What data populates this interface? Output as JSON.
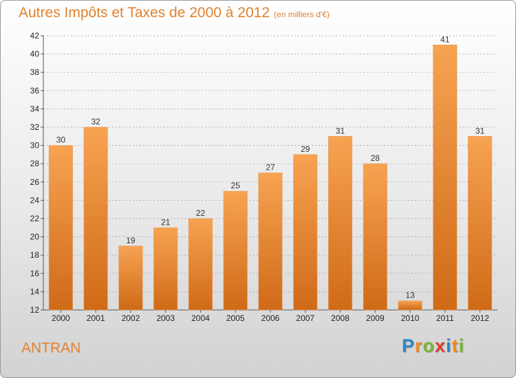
{
  "chart_data": {
    "type": "bar",
    "title": "Autres Impôts et Taxes de 2000 à 2012",
    "subtitle": "(en milliers d'€)",
    "categories": [
      "2000",
      "2001",
      "2002",
      "2003",
      "2004",
      "2005",
      "2006",
      "2007",
      "2008",
      "2009",
      "2010",
      "2011",
      "2012"
    ],
    "values": [
      30,
      32,
      19,
      21,
      22,
      25,
      27,
      29,
      31,
      28,
      13,
      41,
      31
    ],
    "ylim": [
      12,
      42
    ],
    "yticks": [
      12,
      14,
      16,
      18,
      20,
      22,
      24,
      26,
      28,
      30,
      32,
      34,
      36,
      38,
      40,
      42
    ],
    "grid": true,
    "colors": {
      "bar_top": "#f7a352",
      "bar_bottom": "#cf6a17",
      "title": "#e0812e",
      "grid": "#9a9a9a"
    }
  },
  "commune": "ANTRAN",
  "logo": {
    "letters": [
      "P",
      "r",
      "o",
      "x",
      "i",
      "t",
      "i"
    ],
    "colors": [
      "#2e86c9",
      "#f08a1c",
      "#7ab52d",
      "#e33b2e",
      "#2e86c9",
      "#f08a1c",
      "#7ab52d"
    ]
  }
}
